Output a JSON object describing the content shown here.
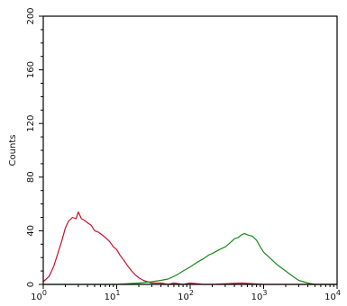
{
  "chart_data": {
    "type": "line",
    "title": "",
    "xlabel": "",
    "ylabel": "Counts",
    "x_scale": "log",
    "xlim": [
      1,
      10000
    ],
    "ylim": [
      0,
      200
    ],
    "y_ticks": [
      "0",
      "40",
      "80",
      "120",
      "160",
      "200"
    ],
    "x_ticks": [
      {
        "base": "10",
        "exp": "0",
        "value": 1
      },
      {
        "base": "10",
        "exp": "1",
        "value": 10
      },
      {
        "base": "10",
        "exp": "2",
        "value": 100
      },
      {
        "base": "10",
        "exp": "3",
        "value": 1000
      },
      {
        "base": "10",
        "exp": "4",
        "value": 10000
      }
    ],
    "grid": false,
    "legend": "none",
    "series": [
      {
        "color": "#c8102e",
        "x": [
          1.0,
          1.2,
          1.4,
          1.6,
          1.8,
          2.0,
          2.2,
          2.5,
          2.8,
          3.0,
          3.3,
          3.6,
          4.0,
          4.5,
          5.0,
          5.6,
          6.3,
          7.0,
          8.0,
          9.0,
          10,
          11,
          12.5,
          14,
          16,
          18,
          20,
          23,
          26,
          30,
          35,
          40,
          50,
          60,
          80,
          100,
          150,
          200,
          500,
          1000,
          3000,
          10000
        ],
        "y": [
          2,
          6,
          14,
          24,
          33,
          42,
          47,
          50,
          49,
          54,
          49,
          48,
          46,
          44,
          40,
          39,
          37,
          35,
          32,
          28,
          26,
          22,
          18,
          14,
          10,
          7,
          5,
          3,
          2,
          1,
          1,
          1,
          0,
          1,
          0,
          1,
          0,
          0,
          1,
          0,
          0,
          0
        ]
      },
      {
        "color": "#1a8a1a",
        "x": [
          1,
          3,
          10,
          20,
          30,
          40,
          50,
          60,
          70,
          80,
          100,
          120,
          150,
          180,
          200,
          250,
          300,
          350,
          400,
          450,
          500,
          550,
          600,
          700,
          800,
          900,
          1000,
          1200,
          1500,
          2000,
          2500,
          3000,
          4000,
          5000,
          7000,
          10000
        ],
        "y": [
          0,
          0,
          0,
          1,
          2,
          3,
          4,
          6,
          8,
          10,
          13,
          16,
          19,
          22,
          23,
          26,
          28,
          31,
          34,
          35,
          37,
          38,
          37,
          36,
          33,
          28,
          24,
          20,
          15,
          10,
          6,
          3,
          1,
          0,
          0,
          0
        ]
      }
    ]
  }
}
